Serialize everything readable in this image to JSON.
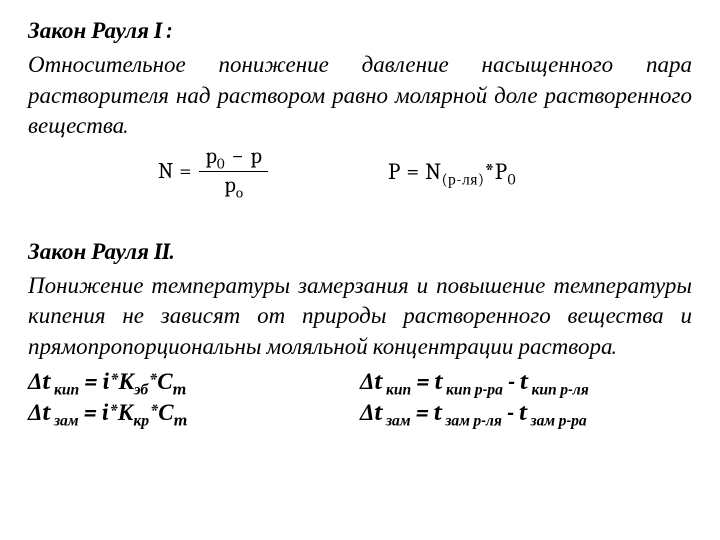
{
  "law1": {
    "title": "Закон Рауля I :",
    "body": "Относительное понижение давление насыщенного пара растворителя над раствором равно молярной доле растворенного вещества.",
    "frac": {
      "N": "N",
      "eq": "=",
      "num_a": "p",
      "num_a_sub": "0",
      "minus": "−",
      "num_b": "p",
      "den": "p",
      "den_sub": "o"
    },
    "p_formula": {
      "lhs": "P",
      "eq": "=",
      "N": "N",
      "N_sub": "(р-ля)",
      "star": "*",
      "P0": "P",
      "P0_sub": "0"
    }
  },
  "law2": {
    "title": "Закон Рауля II.",
    "body": "Понижение температуры замерзания и повышение температуры кипения не зависят от природы растворенного вещества и прямопропорциональны моляльной концентрации раствора."
  },
  "eq": {
    "l1": {
      "dt": "Δt",
      "sub": " кип",
      "eq": " = i*К",
      "k_sub": "эб",
      "tail": "*С",
      "c_sub": "m"
    },
    "l2": {
      "dt": "Δt",
      "sub": " зам",
      "eq": " = i*К",
      "k_sub": "кр",
      "tail": "*С",
      "c_sub": "m"
    },
    "r1": {
      "dt": "Δt",
      "sub": " кип",
      "eq": " = t",
      "a_sub": " кип р-ра",
      "minus": " - t",
      "b_sub": " кип р-ля"
    },
    "r2": {
      "dt": "Δt",
      "sub": " зам",
      "eq": " = t",
      "a_sub": " зам р-ля",
      "minus": " - t",
      "b_sub": " зам  р-ра"
    }
  },
  "style": {
    "text_color": "#000000",
    "background": "#ffffff",
    "font_family": "Cambria, Georgia, Times New Roman, serif",
    "font_size_pt": 17,
    "italic": true
  }
}
